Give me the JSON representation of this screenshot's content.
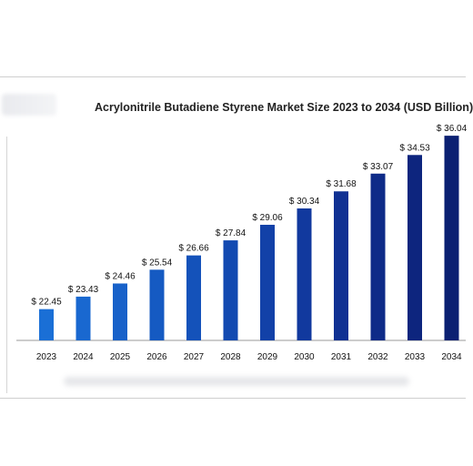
{
  "header": {
    "title": "Acrylonitrile Butadiene Styrene Market Size 2023 to 2034 (USD Billion)"
  },
  "chart_data": {
    "type": "bar",
    "title": "Acrylonitrile Butadiene Styrene Market Size 2023 to 2034 (USD Billion)",
    "xlabel": "",
    "ylabel": "",
    "categories": [
      "2023",
      "2024",
      "2025",
      "2026",
      "2027",
      "2028",
      "2029",
      "2030",
      "2031",
      "2032",
      "2033",
      "2034"
    ],
    "values": [
      22.45,
      23.43,
      24.46,
      25.54,
      26.66,
      27.84,
      29.06,
      30.34,
      31.68,
      33.07,
      34.53,
      36.04
    ],
    "value_labels": [
      "$ 22.45",
      "$ 23.43",
      "$ 24.46",
      "$ 25.54",
      "$ 26.66",
      "$ 27.84",
      "$ 29.06",
      "$ 30.34",
      "$ 31.68",
      "$ 33.07",
      "$ 34.53",
      "$ 36.04"
    ],
    "grid": false,
    "colors": [
      "#1a6fd6",
      "#1968d0",
      "#1761c9",
      "#155ac2",
      "#1452ba",
      "#134ab1",
      "#1241a8",
      "#11399e",
      "#103193",
      "#0e2b88",
      "#0d257e",
      "#0b2072"
    ]
  }
}
